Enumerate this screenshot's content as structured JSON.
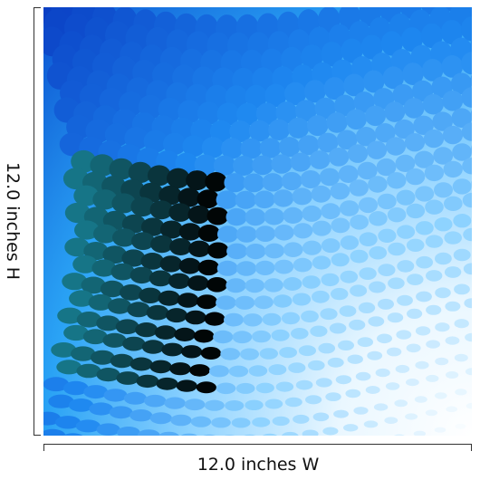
{
  "product": {
    "height_label": "12.0 inches H",
    "width_label": "12.0 inches W"
  },
  "artwork": {
    "subject": "halftone-dot-wave",
    "colors": {
      "deep_blue": "#0a3fc4",
      "mid_blue": "#1e88f0",
      "cyan": "#28d4f5",
      "light_blue": "#8fd3ff",
      "white": "#ffffff"
    }
  }
}
